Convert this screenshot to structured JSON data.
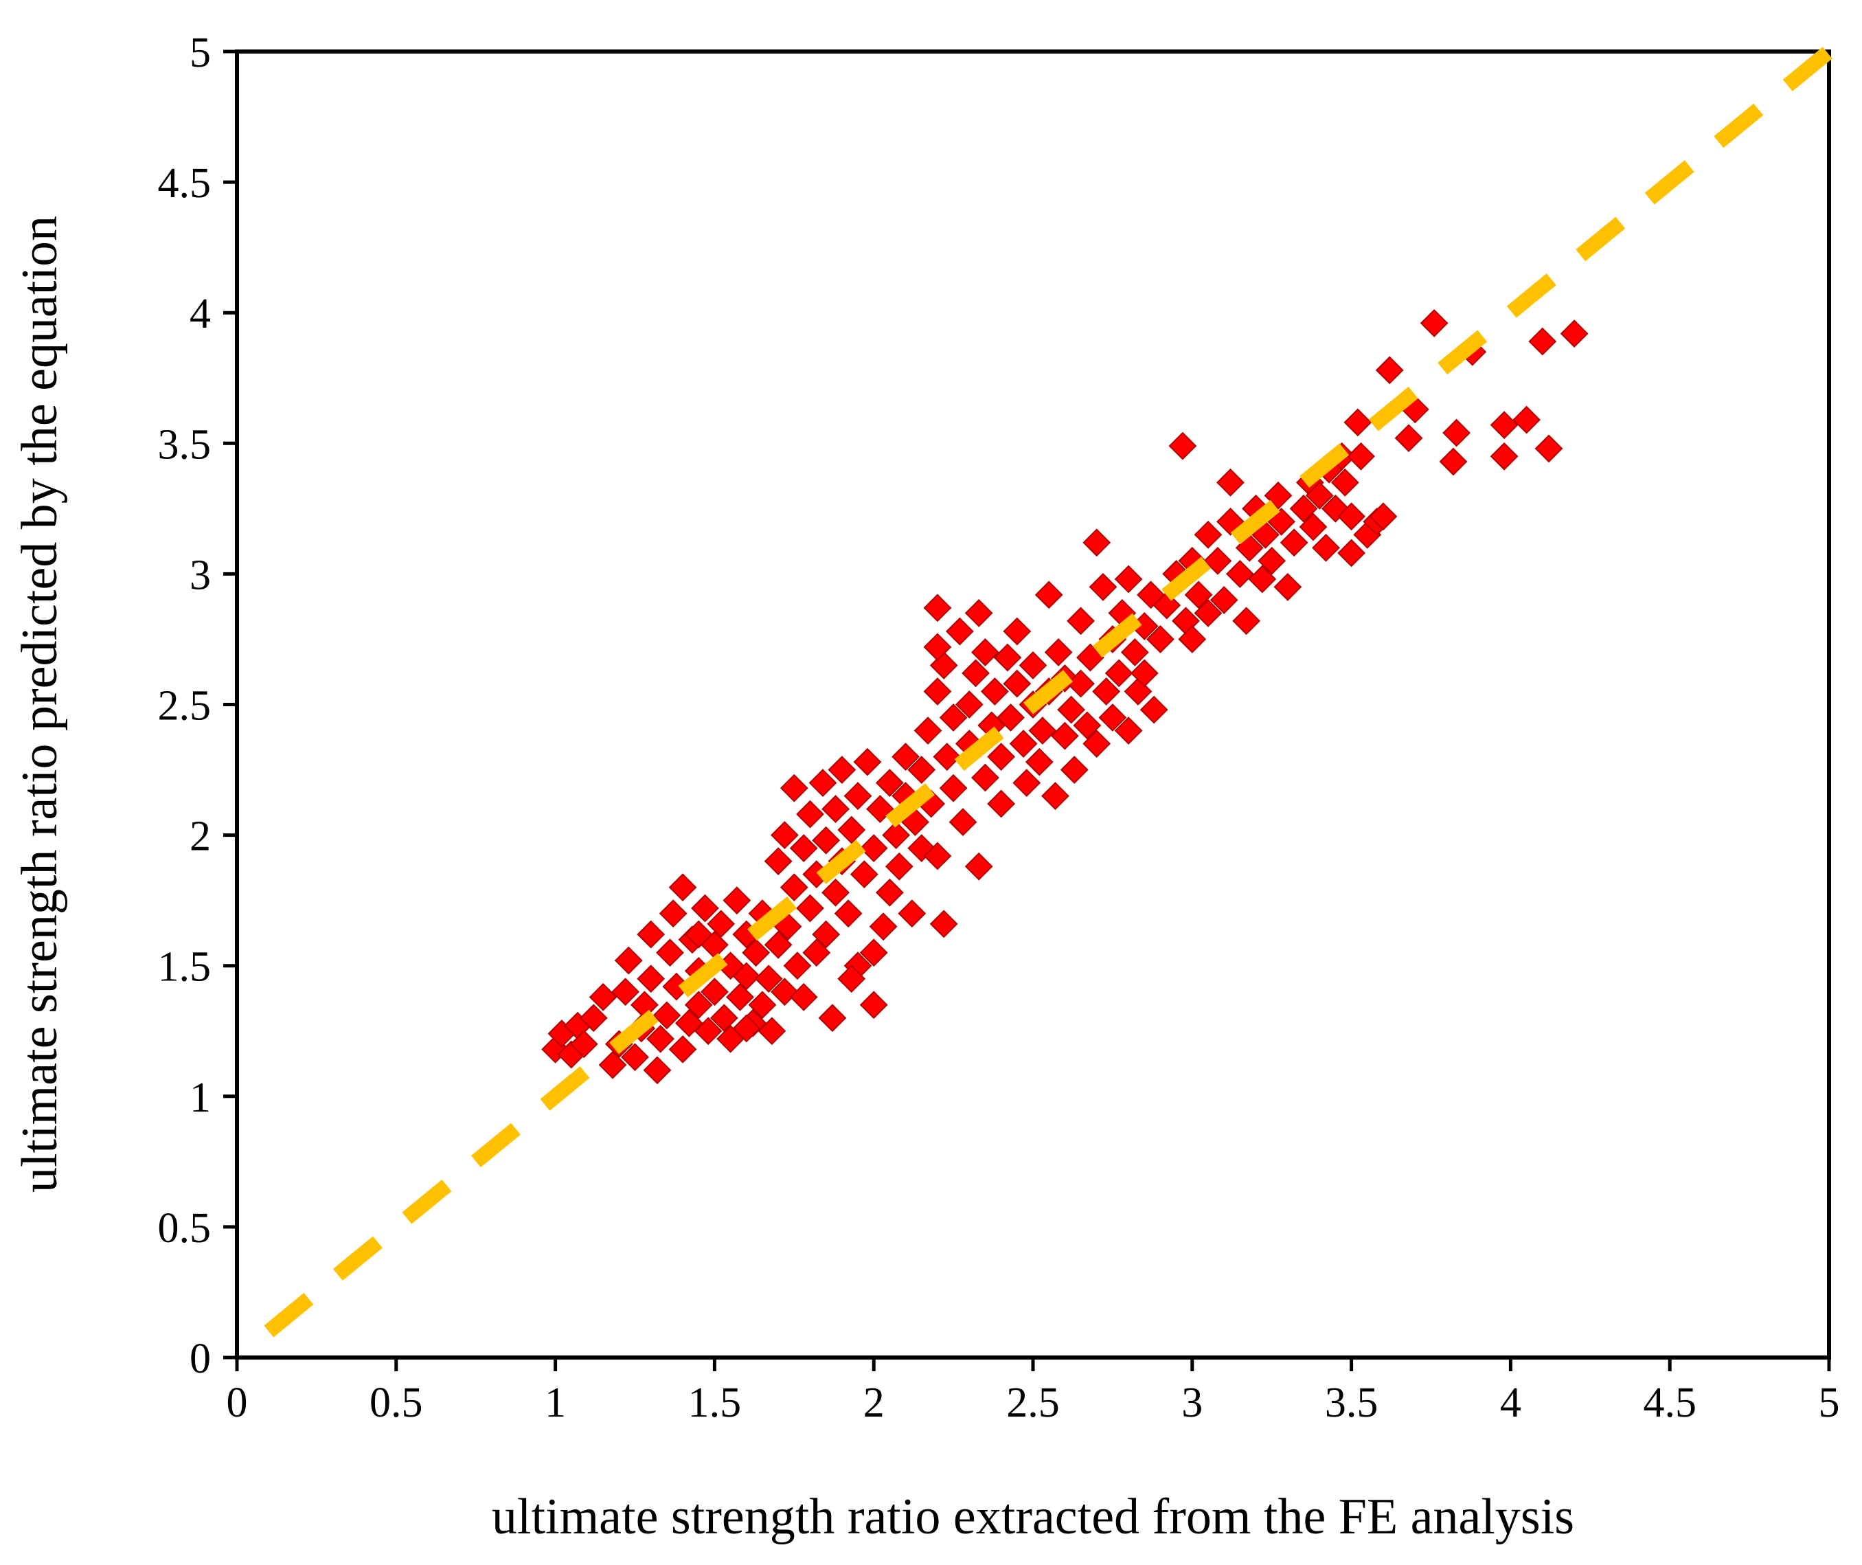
{
  "chart_data": {
    "type": "scatter",
    "xlabel": "ultimate strength ratio extracted from the FE analysis",
    "ylabel": "ultimate strength ratio predicted by the equation",
    "xlim": [
      0,
      5
    ],
    "ylim": [
      0,
      5
    ],
    "xticks": [
      "0",
      "0.5",
      "1",
      "1.5",
      "2",
      "2.5",
      "3",
      "3.5",
      "4",
      "4.5",
      "5"
    ],
    "yticks": [
      "0",
      "0.5",
      "1",
      "1.5",
      "2",
      "2.5",
      "3",
      "3.5",
      "4",
      "4.5",
      "5"
    ],
    "grid": false,
    "legend": "none",
    "colors": {
      "points": "#ff0000",
      "point_edge": "#b30000",
      "reference_line": "#ffc000"
    },
    "reference_line": {
      "name": "y = x",
      "style": "dashed",
      "x": [
        0.1,
        5.0
      ],
      "y": [
        0.1,
        5.0
      ]
    },
    "series": [
      {
        "name": "data",
        "marker": "diamond",
        "points": [
          [
            1.0,
            1.18
          ],
          [
            1.02,
            1.24
          ],
          [
            1.05,
            1.16
          ],
          [
            1.07,
            1.27
          ],
          [
            1.09,
            1.2
          ],
          [
            1.12,
            1.3
          ],
          [
            1.15,
            1.38
          ],
          [
            1.18,
            1.12
          ],
          [
            1.2,
            1.2
          ],
          [
            1.22,
            1.4
          ],
          [
            1.23,
            1.52
          ],
          [
            1.25,
            1.15
          ],
          [
            1.27,
            1.26
          ],
          [
            1.28,
            1.35
          ],
          [
            1.3,
            1.45
          ],
          [
            1.3,
            1.62
          ],
          [
            1.32,
            1.1
          ],
          [
            1.33,
            1.22
          ],
          [
            1.35,
            1.31
          ],
          [
            1.36,
            1.55
          ],
          [
            1.37,
            1.7
          ],
          [
            1.38,
            1.42
          ],
          [
            1.4,
            1.8
          ],
          [
            1.4,
            1.18
          ],
          [
            1.42,
            1.28
          ],
          [
            1.43,
            1.6
          ],
          [
            1.45,
            1.48
          ],
          [
            1.45,
            1.35
          ],
          [
            1.47,
            1.72
          ],
          [
            1.48,
            1.25
          ],
          [
            1.5,
            1.4
          ],
          [
            1.5,
            1.58
          ],
          [
            1.52,
            1.66
          ],
          [
            1.53,
            1.3
          ],
          [
            1.55,
            1.5
          ],
          [
            1.55,
            1.22
          ],
          [
            1.57,
            1.75
          ],
          [
            1.58,
            1.38
          ],
          [
            1.6,
            1.46
          ],
          [
            1.6,
            1.62
          ],
          [
            1.62,
            1.28
          ],
          [
            1.63,
            1.55
          ],
          [
            1.65,
            1.35
          ],
          [
            1.65,
            1.7
          ],
          [
            1.67,
            1.45
          ],
          [
            1.68,
            1.25
          ],
          [
            1.7,
            1.9
          ],
          [
            1.7,
            1.58
          ],
          [
            1.72,
            2.0
          ],
          [
            1.72,
            1.4
          ],
          [
            1.73,
            1.65
          ],
          [
            1.75,
            2.18
          ],
          [
            1.75,
            1.8
          ],
          [
            1.76,
            1.5
          ],
          [
            1.78,
            1.95
          ],
          [
            1.78,
            1.38
          ],
          [
            1.8,
            2.08
          ],
          [
            1.8,
            1.72
          ],
          [
            1.82,
            1.85
          ],
          [
            1.82,
            1.55
          ],
          [
            1.84,
            2.2
          ],
          [
            1.85,
            1.98
          ],
          [
            1.85,
            1.62
          ],
          [
            1.87,
            1.3
          ],
          [
            1.88,
            1.78
          ],
          [
            1.88,
            2.1
          ],
          [
            1.9,
            1.9
          ],
          [
            1.9,
            2.25
          ],
          [
            1.92,
            1.7
          ],
          [
            1.93,
            2.02
          ],
          [
            1.95,
            1.5
          ],
          [
            1.95,
            2.15
          ],
          [
            1.97,
            1.85
          ],
          [
            1.98,
            2.28
          ],
          [
            2.0,
            1.95
          ],
          [
            2.0,
            1.35
          ],
          [
            2.02,
            2.1
          ],
          [
            2.03,
            1.65
          ],
          [
            2.05,
            2.2
          ],
          [
            2.05,
            1.78
          ],
          [
            2.07,
            2.0
          ],
          [
            2.08,
            1.88
          ],
          [
            2.1,
            2.15
          ],
          [
            2.1,
            2.3
          ],
          [
            2.12,
            1.7
          ],
          [
            2.13,
            2.05
          ],
          [
            2.15,
            1.95
          ],
          [
            2.15,
            2.25
          ],
          [
            2.17,
            2.4
          ],
          [
            2.18,
            2.12
          ],
          [
            2.2,
            2.55
          ],
          [
            2.2,
            1.92
          ],
          [
            2.2,
            2.87
          ],
          [
            2.22,
            2.65
          ],
          [
            2.22,
            1.66
          ],
          [
            2.23,
            2.3
          ],
          [
            2.25,
            2.45
          ],
          [
            2.25,
            2.18
          ],
          [
            2.27,
            2.78
          ],
          [
            2.28,
            2.05
          ],
          [
            2.3,
            2.5
          ],
          [
            2.3,
            2.35
          ],
          [
            2.32,
            2.62
          ],
          [
            2.33,
            2.85
          ],
          [
            2.35,
            2.22
          ],
          [
            2.35,
            2.7
          ],
          [
            2.37,
            2.42
          ],
          [
            2.38,
            2.55
          ],
          [
            2.4,
            2.3
          ],
          [
            2.4,
            2.12
          ],
          [
            2.42,
            2.68
          ],
          [
            2.43,
            2.45
          ],
          [
            2.45,
            2.78
          ],
          [
            2.45,
            2.58
          ],
          [
            2.47,
            2.35
          ],
          [
            2.48,
            2.2
          ],
          [
            2.5,
            2.5
          ],
          [
            2.5,
            2.65
          ],
          [
            2.52,
            2.28
          ],
          [
            2.53,
            2.4
          ],
          [
            2.55,
            2.55
          ],
          [
            2.55,
            2.92
          ],
          [
            2.57,
            2.15
          ],
          [
            2.58,
            2.7
          ],
          [
            2.6,
            2.38
          ],
          [
            2.6,
            2.6
          ],
          [
            2.62,
            2.48
          ],
          [
            2.63,
            2.25
          ],
          [
            2.65,
            2.82
          ],
          [
            2.65,
            2.58
          ],
          [
            2.67,
            2.42
          ],
          [
            2.68,
            2.68
          ],
          [
            2.7,
            3.12
          ],
          [
            2.7,
            2.35
          ],
          [
            2.72,
            2.95
          ],
          [
            2.73,
            2.55
          ],
          [
            2.75,
            2.75
          ],
          [
            2.75,
            2.45
          ],
          [
            2.77,
            2.62
          ],
          [
            2.78,
            2.85
          ],
          [
            2.8,
            2.4
          ],
          [
            2.8,
            2.98
          ],
          [
            2.82,
            2.7
          ],
          [
            2.83,
            2.55
          ],
          [
            2.85,
            2.8
          ],
          [
            2.85,
            2.62
          ],
          [
            2.87,
            2.92
          ],
          [
            2.88,
            2.48
          ],
          [
            2.9,
            2.75
          ],
          [
            2.92,
            2.88
          ],
          [
            2.95,
            3.0
          ],
          [
            2.97,
            3.49
          ],
          [
            2.98,
            2.82
          ],
          [
            3.0,
            2.75
          ],
          [
            3.0,
            3.05
          ],
          [
            3.02,
            2.92
          ],
          [
            3.05,
            3.15
          ],
          [
            3.05,
            2.85
          ],
          [
            3.08,
            3.05
          ],
          [
            3.1,
            2.9
          ],
          [
            3.12,
            3.2
          ],
          [
            3.12,
            3.35
          ],
          [
            3.15,
            3.0
          ],
          [
            3.17,
            2.82
          ],
          [
            3.18,
            3.1
          ],
          [
            3.2,
            3.25
          ],
          [
            3.22,
            2.98
          ],
          [
            3.23,
            3.15
          ],
          [
            3.25,
            3.05
          ],
          [
            3.27,
            3.3
          ],
          [
            3.28,
            3.2
          ],
          [
            3.3,
            2.95
          ],
          [
            3.32,
            3.12
          ],
          [
            3.35,
            3.25
          ],
          [
            3.37,
            3.35
          ],
          [
            3.38,
            3.18
          ],
          [
            3.4,
            3.3
          ],
          [
            3.42,
            3.1
          ],
          [
            3.43,
            3.4
          ],
          [
            3.45,
            3.25
          ],
          [
            3.47,
            3.45
          ],
          [
            3.48,
            3.35
          ],
          [
            3.5,
            3.22
          ],
          [
            3.5,
            3.08
          ],
          [
            3.52,
            3.58
          ],
          [
            3.53,
            3.45
          ],
          [
            3.55,
            3.15
          ],
          [
            3.58,
            3.2
          ],
          [
            3.6,
            3.22
          ],
          [
            3.62,
            3.78
          ],
          [
            3.68,
            3.52
          ],
          [
            3.7,
            3.63
          ],
          [
            3.76,
            3.96
          ],
          [
            3.82,
            3.43
          ],
          [
            3.83,
            3.54
          ],
          [
            3.88,
            3.85
          ],
          [
            3.98,
            3.45
          ],
          [
            3.98,
            3.57
          ],
          [
            4.05,
            3.59
          ],
          [
            4.1,
            3.89
          ],
          [
            4.12,
            3.48
          ],
          [
            4.2,
            3.92
          ],
          [
            2.33,
            1.88
          ],
          [
            2.2,
            2.72
          ],
          [
            2.0,
            1.55
          ],
          [
            1.93,
            1.45
          ],
          [
            1.6,
            1.26
          ],
          [
            1.45,
            1.62
          ]
        ]
      }
    ]
  }
}
